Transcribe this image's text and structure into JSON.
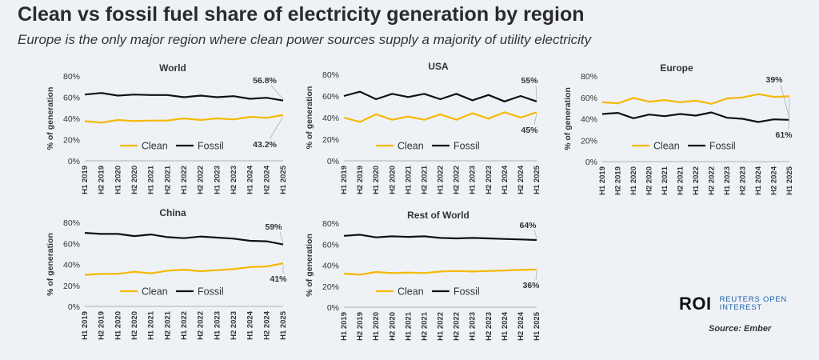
{
  "header": {
    "title": "Clean vs fossil fuel share of electricity generation by region",
    "subtitle": "Europe is the only major region where clean power sources supply a majority of utility electricity"
  },
  "footer": {
    "logo": "ROI",
    "logo_sub_line1": "REUTERS OPEN",
    "logo_sub_line2": "INTEREST",
    "source": "Source: Ember"
  },
  "colors": {
    "clean": "#f5b800",
    "fossil": "#111111",
    "axis": "#b0b0b0",
    "text": "#333333"
  },
  "legend": {
    "clean": "Clean",
    "fossil": "Fossil"
  },
  "chart_data": [
    {
      "type": "line",
      "title": "World",
      "ylabel": "% of generation",
      "ylim": [
        0,
        80
      ],
      "yticks": [
        "0%",
        "20%",
        "40%",
        "60%",
        "80%"
      ],
      "categories": [
        "H1 2019",
        "H2 2019",
        "H1 2020",
        "H2 2020",
        "H1 2021",
        "H2 2021",
        "H1 2022",
        "H2 2022",
        "H1 2023",
        "H2 2023",
        "H1 2024",
        "H2 2024",
        "H1 2025"
      ],
      "series": [
        {
          "name": "Clean",
          "values": [
            37.5,
            36,
            38.5,
            37.5,
            38,
            38,
            40,
            38.5,
            40,
            39,
            41.5,
            40.5,
            43.2
          ]
        },
        {
          "name": "Fossil",
          "values": [
            62.5,
            64,
            61.5,
            62.5,
            62,
            62,
            60,
            61.5,
            60,
            61,
            58.5,
            59.5,
            56.8
          ]
        }
      ],
      "labels": {
        "clean_end": "43.2%",
        "fossil_end": "56.8%"
      }
    },
    {
      "type": "line",
      "title": "USA",
      "ylabel": "% of generation",
      "ylim": [
        0,
        80
      ],
      "yticks": [
        "0%",
        "20%",
        "40%",
        "60%",
        "80%"
      ],
      "categories": [
        "H1 2019",
        "H2 2019",
        "H1 2020",
        "H2 2020",
        "H1 2021",
        "H2 2021",
        "H1 2022",
        "H2 2022",
        "H1 2023",
        "H2 2023",
        "H1 2024",
        "H2 2024",
        "H1 2025"
      ],
      "series": [
        {
          "name": "Clean",
          "values": [
            40,
            36,
            43,
            38,
            41,
            38,
            43,
            38,
            44,
            39,
            45,
            40,
            45
          ]
        },
        {
          "name": "Fossil",
          "values": [
            60,
            64,
            57,
            62,
            59,
            62,
            57,
            62,
            56,
            61,
            55,
            60,
            55
          ]
        }
      ],
      "labels": {
        "clean_end": "45%",
        "fossil_end": "55%"
      }
    },
    {
      "type": "line",
      "title": "Europe",
      "ylabel": "% of generation",
      "ylim": [
        0,
        80
      ],
      "yticks": [
        "0%",
        "20%",
        "40%",
        "60%",
        "80%"
      ],
      "categories": [
        "H1 2019",
        "H2 2019",
        "H1 2020",
        "H2 2020",
        "H1 2021",
        "H2 2021",
        "H1 2022",
        "H2 2022",
        "H1 2023",
        "H2 2023",
        "H1 2024",
        "H2 2024",
        "H1 2025"
      ],
      "series": [
        {
          "name": "Clean",
          "values": [
            55.5,
            54.5,
            59.5,
            56,
            57.5,
            55.5,
            57,
            54,
            59,
            60,
            63,
            60.5,
            61
          ]
        },
        {
          "name": "Fossil",
          "values": [
            44.5,
            45.5,
            40.5,
            44,
            42.5,
            44.5,
            43,
            46,
            41,
            40,
            37,
            39.5,
            39
          ]
        }
      ],
      "labels": {
        "clean_end": "61%",
        "fossil_end": "39%"
      }
    },
    {
      "type": "line",
      "title": "China",
      "ylabel": "% of generation",
      "ylim": [
        0,
        80
      ],
      "yticks": [
        "0%",
        "20%",
        "40%",
        "60%",
        "80%"
      ],
      "categories": [
        "H1 2019",
        "H2 2019",
        "H1 2020",
        "H2 2020",
        "H1 2021",
        "H2 2021",
        "H1 2022",
        "H2 2022",
        "H1 2023",
        "H2 2023",
        "H1 2024",
        "H2 2024",
        "H1 2025"
      ],
      "series": [
        {
          "name": "Clean",
          "values": [
            30,
            31,
            31,
            33,
            31.5,
            34,
            35,
            33.5,
            34.5,
            35.5,
            37.5,
            38,
            41
          ]
        },
        {
          "name": "Fossil",
          "values": [
            70,
            69,
            69,
            67,
            68.5,
            66,
            65,
            66.5,
            65.5,
            64.5,
            62.5,
            62,
            59
          ]
        }
      ],
      "labels": {
        "clean_end": "41%",
        "fossil_end": "59%"
      }
    },
    {
      "type": "line",
      "title": "Rest of World",
      "ylabel": "% of generation",
      "ylim": [
        0,
        80
      ],
      "yticks": [
        "0%",
        "20%",
        "40%",
        "60%",
        "80%"
      ],
      "categories": [
        "H1 2019",
        "H2 2019",
        "H1 2020",
        "H2 2020",
        "H1 2021",
        "H2 2021",
        "H1 2022",
        "H2 2022",
        "H1 2023",
        "H2 2023",
        "H1 2024",
        "H2 2024",
        "H1 2025"
      ],
      "series": [
        {
          "name": "Clean",
          "values": [
            32,
            31,
            33.5,
            32.5,
            33,
            32.5,
            34,
            34.5,
            34,
            34.5,
            35,
            35.5,
            36
          ]
        },
        {
          "name": "Fossil",
          "values": [
            68,
            69,
            66.5,
            67.5,
            67,
            67.5,
            66,
            65.5,
            66,
            65.5,
            65,
            64.5,
            64
          ]
        }
      ],
      "labels": {
        "clean_end": "36%",
        "fossil_end": "64%"
      }
    }
  ]
}
